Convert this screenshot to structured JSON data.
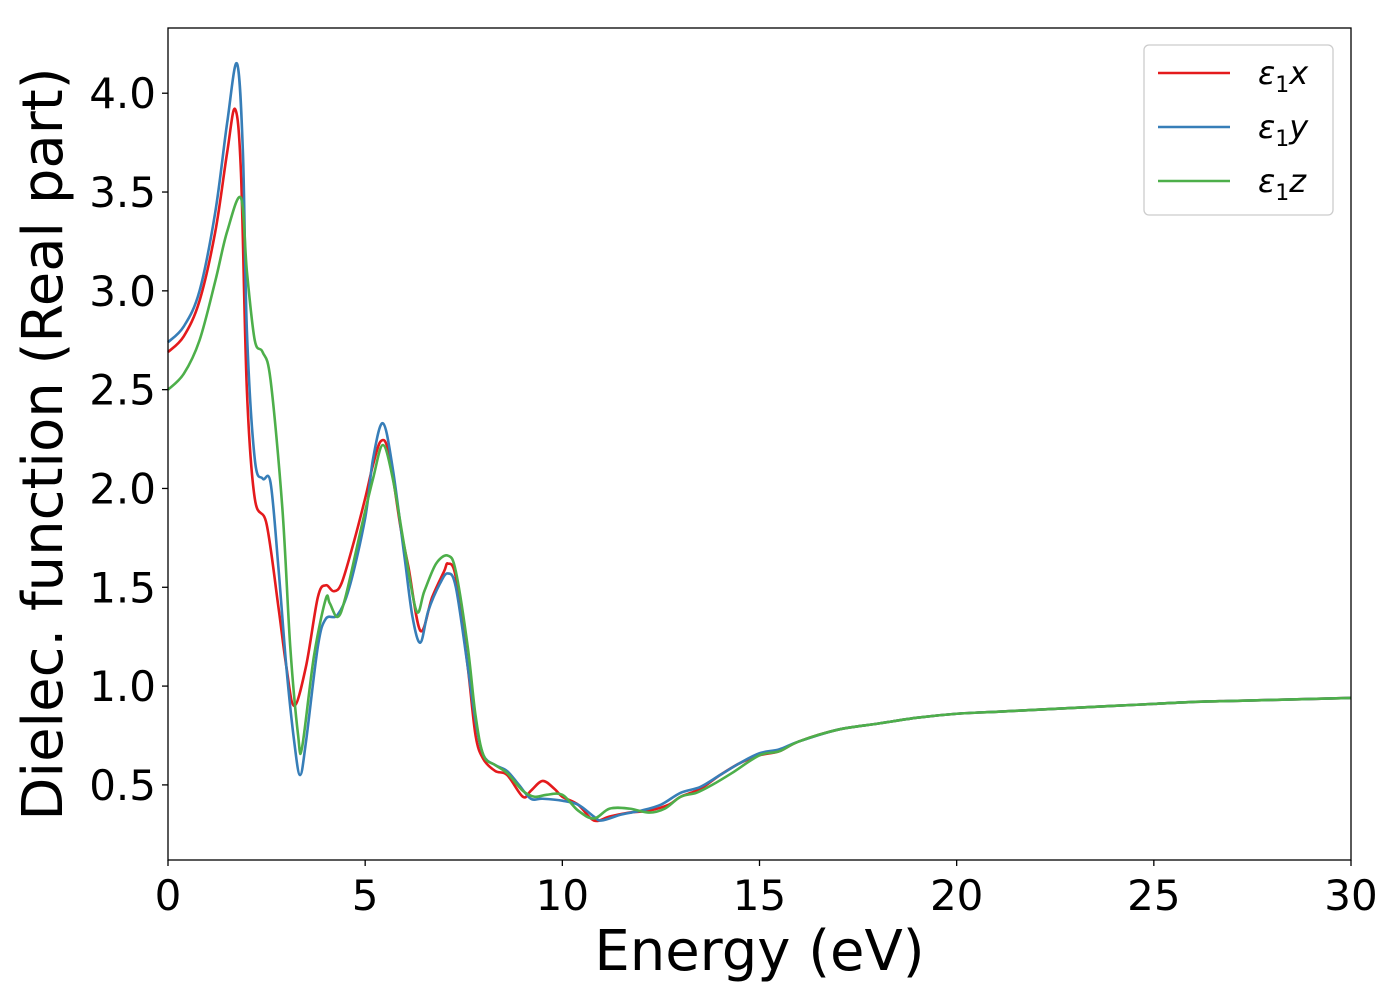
{
  "chart_data": {
    "type": "line",
    "xlabel": "Energy (eV)",
    "ylabel": "Dielec. function (Real part)",
    "xlim": [
      0,
      30
    ],
    "ylim": [
      0.12,
      4.33
    ],
    "xticks": [
      0,
      5,
      10,
      15,
      20,
      25,
      30
    ],
    "yticks": [
      0.5,
      1.0,
      1.5,
      2.0,
      2.5,
      3.0,
      3.5,
      4.0
    ],
    "xtick_labels": [
      "0",
      "5",
      "10",
      "15",
      "20",
      "25",
      "30"
    ],
    "ytick_labels": [
      "0.5",
      "1.0",
      "1.5",
      "2.0",
      "2.5",
      "3.0",
      "3.5",
      "4.0"
    ],
    "grid": false,
    "legend_position": "top-right",
    "series": [
      {
        "name": "ε1x",
        "label_parts": {
          "base": "ε",
          "sub": "1",
          "suffix": "x"
        },
        "color": "#e41a1c",
        "x": [
          0,
          0.4,
          0.8,
          1.2,
          1.5,
          1.7,
          1.85,
          2.0,
          2.2,
          2.5,
          2.8,
          3.0,
          3.2,
          3.5,
          3.8,
          4.0,
          4.2,
          4.4,
          4.7,
          5.0,
          5.2,
          5.4,
          5.6,
          5.9,
          6.1,
          6.4,
          6.7,
          7.0,
          7.1,
          7.3,
          7.6,
          7.8,
          8.0,
          8.3,
          8.6,
          9.0,
          9.2,
          9.5,
          9.8,
          10.0,
          10.4,
          10.8,
          11.2,
          11.7,
          12.2,
          12.7,
          13.0,
          13.5,
          14.0,
          14.5,
          15.0,
          15.5,
          16.0,
          17.0,
          18.0,
          19.0,
          20.0,
          21.0,
          22.0,
          23.0,
          24.0,
          25.0,
          26.0,
          27.0,
          28.0,
          29.0,
          30.0
        ],
        "y": [
          2.69,
          2.77,
          2.95,
          3.3,
          3.7,
          3.92,
          3.6,
          2.5,
          1.95,
          1.82,
          1.4,
          1.1,
          0.9,
          1.1,
          1.45,
          1.51,
          1.48,
          1.52,
          1.72,
          1.95,
          2.12,
          2.24,
          2.18,
          1.8,
          1.6,
          1.28,
          1.45,
          1.58,
          1.62,
          1.55,
          1.1,
          0.75,
          0.63,
          0.57,
          0.55,
          0.44,
          0.47,
          0.52,
          0.48,
          0.44,
          0.4,
          0.32,
          0.34,
          0.36,
          0.37,
          0.4,
          0.44,
          0.48,
          0.55,
          0.61,
          0.65,
          0.67,
          0.72,
          0.78,
          0.81,
          0.84,
          0.86,
          0.87,
          0.88,
          0.89,
          0.9,
          0.91,
          0.92,
          0.925,
          0.93,
          0.935,
          0.94
        ]
      },
      {
        "name": "ε1y",
        "label_parts": {
          "base": "ε",
          "sub": "1",
          "suffix": "y"
        },
        "color": "#377eb8",
        "x": [
          0,
          0.4,
          0.8,
          1.2,
          1.5,
          1.75,
          1.9,
          2.0,
          2.2,
          2.4,
          2.6,
          2.8,
          3.0,
          3.2,
          3.35,
          3.5,
          3.8,
          4.0,
          4.3,
          4.6,
          5.0,
          5.2,
          5.45,
          5.7,
          6.0,
          6.2,
          6.4,
          6.6,
          6.9,
          7.1,
          7.3,
          7.6,
          7.8,
          8.0,
          8.3,
          8.6,
          8.9,
          9.2,
          9.5,
          10.0,
          10.4,
          10.8,
          11.0,
          11.5,
          12.0,
          12.5,
          13.0,
          13.5,
          14.0,
          14.5,
          15.0,
          15.5,
          16.0,
          17.0,
          18.0,
          19.0,
          20.0,
          21.0,
          22.0,
          23.0,
          24.0,
          25.0,
          26.0,
          27.0,
          28.0,
          29.0,
          30.0
        ],
        "y": [
          2.74,
          2.82,
          3.0,
          3.4,
          3.85,
          4.15,
          3.7,
          2.8,
          2.15,
          2.05,
          2.03,
          1.6,
          1.1,
          0.72,
          0.55,
          0.72,
          1.2,
          1.34,
          1.36,
          1.5,
          1.85,
          2.15,
          2.33,
          2.1,
          1.65,
          1.35,
          1.22,
          1.38,
          1.52,
          1.57,
          1.5,
          1.1,
          0.82,
          0.65,
          0.6,
          0.57,
          0.5,
          0.43,
          0.43,
          0.42,
          0.4,
          0.34,
          0.32,
          0.35,
          0.37,
          0.4,
          0.46,
          0.49,
          0.55,
          0.61,
          0.66,
          0.68,
          0.72,
          0.78,
          0.81,
          0.84,
          0.86,
          0.87,
          0.88,
          0.89,
          0.9,
          0.91,
          0.92,
          0.925,
          0.93,
          0.935,
          0.94
        ]
      },
      {
        "name": "ε1z",
        "label_parts": {
          "base": "ε",
          "sub": "1",
          "suffix": "z"
        },
        "color": "#4daf4a",
        "x": [
          0,
          0.4,
          0.8,
          1.2,
          1.5,
          1.85,
          2.0,
          2.2,
          2.4,
          2.6,
          2.9,
          3.1,
          3.3,
          3.4,
          3.7,
          4.0,
          4.1,
          4.3,
          4.5,
          4.9,
          5.2,
          5.45,
          5.7,
          6.0,
          6.3,
          6.5,
          6.8,
          7.1,
          7.3,
          7.6,
          7.8,
          8.0,
          8.3,
          8.6,
          9.0,
          9.3,
          9.6,
          10.0,
          10.4,
          10.8,
          11.2,
          11.7,
          12.2,
          12.6,
          13.0,
          13.4,
          13.8,
          14.3,
          15.0,
          15.5,
          16.0,
          17.0,
          18.0,
          19.0,
          20.0,
          21.0,
          22.0,
          23.0,
          24.0,
          25.0,
          26.0,
          27.0,
          28.0,
          29.0,
          30.0
        ],
        "y": [
          2.5,
          2.58,
          2.75,
          3.05,
          3.3,
          3.47,
          3.1,
          2.75,
          2.69,
          2.55,
          1.9,
          1.2,
          0.75,
          0.69,
          1.15,
          1.44,
          1.42,
          1.35,
          1.45,
          1.8,
          2.05,
          2.22,
          2.05,
          1.7,
          1.38,
          1.48,
          1.62,
          1.66,
          1.58,
          1.2,
          0.85,
          0.65,
          0.6,
          0.56,
          0.47,
          0.44,
          0.45,
          0.45,
          0.37,
          0.33,
          0.38,
          0.38,
          0.36,
          0.38,
          0.44,
          0.46,
          0.5,
          0.56,
          0.65,
          0.67,
          0.72,
          0.78,
          0.81,
          0.84,
          0.86,
          0.87,
          0.88,
          0.89,
          0.9,
          0.91,
          0.92,
          0.925,
          0.93,
          0.935,
          0.94
        ]
      }
    ]
  }
}
